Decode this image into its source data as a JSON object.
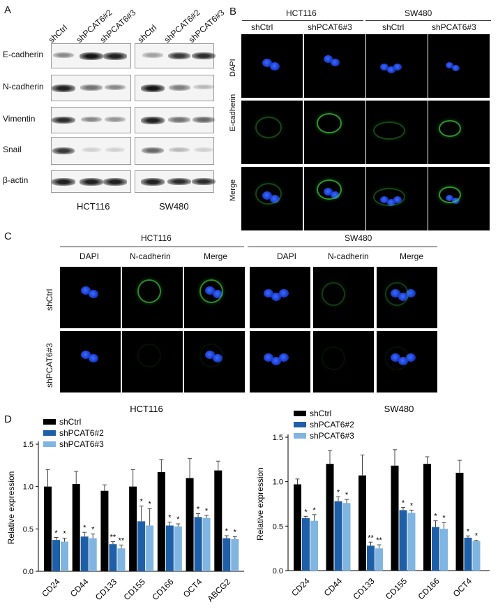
{
  "panel_a": {
    "letter": "A",
    "lanes": [
      "shCtrl",
      "shPCAT6#2",
      "shPCAT6#3"
    ],
    "proteins": [
      "E-cadherin",
      "N-cadherin",
      "Vimentin",
      "Snail",
      "β-actin"
    ],
    "cell_lines": [
      "HCT116",
      "SW480"
    ]
  },
  "panel_b": {
    "letter": "B",
    "cell_lines": [
      "HCT116",
      "SW480"
    ],
    "columns": [
      "shCtrl",
      "shPCAT6#3",
      "shCtrl",
      "shPCAT6#3"
    ],
    "rows": [
      "DAPI",
      "E-cadherin",
      "Merge"
    ]
  },
  "panel_c": {
    "letter": "C",
    "cell_lines": [
      "HCT116",
      "SW480"
    ],
    "columns": [
      "DAPI",
      "N-cadherin",
      "Merge",
      "DAPI",
      "N-cadherin",
      "Merge"
    ],
    "rows": [
      "shCtrl",
      "shPCAT6#3"
    ]
  },
  "panel_d": {
    "letter": "D"
  },
  "chart_data": [
    {
      "type": "bar",
      "title": "HCT116",
      "ylabel": "Relative expression",
      "ylim": [
        0,
        1.5
      ],
      "yticks": [
        "0.0",
        "0.5",
        "1.0",
        "1.5"
      ],
      "legend": "top-left",
      "categories": [
        "CD24",
        "CD44",
        "CD133",
        "CD155",
        "CD166",
        "OCT4",
        "ABCG2"
      ],
      "series": [
        {
          "name": "shCtrl",
          "color": "#000000",
          "values": [
            1.0,
            1.03,
            0.95,
            1.0,
            1.17,
            1.1,
            1.19
          ],
          "errors": [
            0.2,
            0.15,
            0.07,
            0.2,
            0.15,
            0.23,
            0.11
          ],
          "stars": [
            "",
            "",
            "",
            "",
            "",
            "",
            ""
          ]
        },
        {
          "name": "shPCAT6#2",
          "color": "#1f5fa8",
          "values": [
            0.37,
            0.41,
            0.32,
            0.59,
            0.54,
            0.64,
            0.39
          ],
          "errors": [
            0.03,
            0.05,
            0.03,
            0.18,
            0.04,
            0.04,
            0.03
          ],
          "stars": [
            "*",
            "*",
            "**",
            "*",
            "*",
            "*",
            "*"
          ]
        },
        {
          "name": "shPCAT6#3",
          "color": "#7fb5e0",
          "values": [
            0.35,
            0.39,
            0.27,
            0.54,
            0.53,
            0.63,
            0.38
          ],
          "errors": [
            0.04,
            0.05,
            0.04,
            0.2,
            0.03,
            0.03,
            0.03
          ],
          "stars": [
            "*",
            "*",
            "**",
            "*",
            "*",
            "*",
            "*"
          ]
        }
      ]
    },
    {
      "type": "bar",
      "title": "SW480",
      "ylabel": "Relative expression",
      "ylim": [
        0,
        1.5
      ],
      "yticks": [
        "0.0",
        "0.5",
        "1.0",
        "1.5"
      ],
      "legend": "top-left",
      "categories": [
        "CD24",
        "CD44",
        "CD133",
        "CD155",
        "CD166",
        "OCT4"
      ],
      "series": [
        {
          "name": "shCtrl",
          "color": "#000000",
          "values": [
            0.97,
            1.2,
            1.07,
            1.18,
            1.2,
            1.1
          ],
          "errors": [
            0.06,
            0.15,
            0.23,
            0.18,
            0.08,
            0.14
          ],
          "stars": [
            "",
            "",
            "",
            "",
            "",
            ""
          ]
        },
        {
          "name": "shPCAT6#2",
          "color": "#1f5fa8",
          "values": [
            0.59,
            0.78,
            0.28,
            0.68,
            0.49,
            0.37
          ],
          "errors": [
            0.02,
            0.05,
            0.04,
            0.03,
            0.07,
            0.02
          ],
          "stars": [
            "*",
            "*",
            "**",
            "*",
            "*",
            "*"
          ]
        },
        {
          "name": "shPCAT6#3",
          "color": "#7fb5e0",
          "values": [
            0.56,
            0.76,
            0.25,
            0.65,
            0.47,
            0.33
          ],
          "errors": [
            0.07,
            0.04,
            0.04,
            0.03,
            0.07,
            0.01
          ],
          "stars": [
            "*",
            "*",
            "**",
            "*",
            "*",
            "*"
          ]
        }
      ]
    }
  ]
}
